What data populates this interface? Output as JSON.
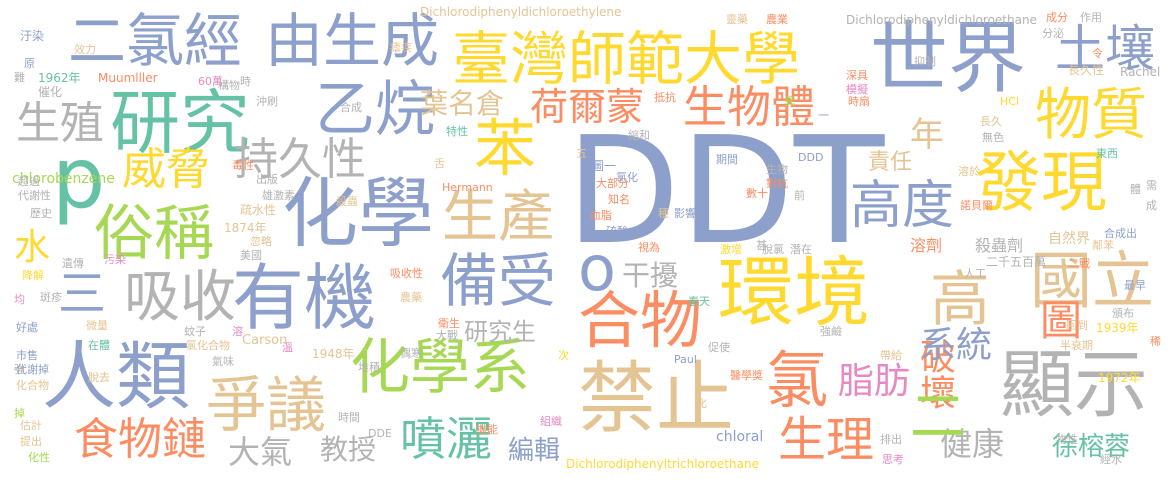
{
  "colors": {
    "blue": "#8DA0CB",
    "green": "#66C2A5",
    "orange": "#FC8D62",
    "pink": "#E78AC3",
    "lime": "#A6D854",
    "yellow": "#FFD92F",
    "tan": "#E5C494",
    "gray": "#B3B3B3"
  },
  "words": [
    {
      "text": "DDT",
      "color": "blue"
    },
    {
      "text": "環境",
      "color": "yellow"
    },
    {
      "text": "世界",
      "color": "blue"
    },
    {
      "text": "臺灣師範大學",
      "color": "yellow"
    },
    {
      "text": "二氯經",
      "color": "blue"
    },
    {
      "text": "由生成",
      "color": "blue"
    },
    {
      "text": "化學",
      "color": "blue"
    },
    {
      "text": "禁止",
      "color": "tan"
    },
    {
      "text": "有機",
      "color": "blue"
    },
    {
      "text": "人類",
      "color": "blue"
    },
    {
      "text": "研究",
      "color": "green"
    },
    {
      "text": "乙烷",
      "color": "blue"
    },
    {
      "text": "發現",
      "color": "yellow"
    },
    {
      "text": "物質",
      "color": "yellow"
    },
    {
      "text": "土壤",
      "color": "blue"
    },
    {
      "text": "顯示",
      "color": "gray"
    },
    {
      "text": "化學系",
      "color": "lime"
    },
    {
      "text": "合物",
      "color": "orange"
    },
    {
      "text": "備受",
      "color": "blue"
    },
    {
      "text": "爭議",
      "color": "tan"
    },
    {
      "text": "國立",
      "color": "tan"
    },
    {
      "text": "高度",
      "color": "blue"
    },
    {
      "text": "苯",
      "color": "yellow"
    },
    {
      "text": "p",
      "color": "green"
    },
    {
      "text": "俗稱",
      "color": "lime"
    },
    {
      "text": "持久性",
      "color": "gray"
    },
    {
      "text": "吸收",
      "color": "gray"
    },
    {
      "text": "生產",
      "color": "tan"
    },
    {
      "text": "高",
      "color": "tan"
    },
    {
      "text": "氯",
      "color": "orange"
    },
    {
      "text": "威脅",
      "color": "yellow"
    },
    {
      "text": "噴灑",
      "color": "green"
    },
    {
      "text": "食物鏈",
      "color": "orange"
    },
    {
      "text": "生物體",
      "color": "orange"
    },
    {
      "text": "荷爾蒙",
      "color": "orange"
    },
    {
      "text": "生理",
      "color": "orange"
    },
    {
      "text": "葉名倉",
      "color": "tan"
    },
    {
      "text": "生殖",
      "color": "gray"
    },
    {
      "text": "破壞",
      "color": "orange"
    },
    {
      "text": "脂肪",
      "color": "pink"
    },
    {
      "text": "圖",
      "color": "orange"
    },
    {
      "text": "系統",
      "color": "blue"
    },
    {
      "text": "健康",
      "color": "gray"
    },
    {
      "text": "徐榕蓉",
      "color": "green"
    },
    {
      "text": "大氣",
      "color": "gray"
    },
    {
      "text": "教授",
      "color": "gray"
    },
    {
      "text": "編輯",
      "color": "blue"
    },
    {
      "text": "研究生",
      "color": "gray"
    },
    {
      "text": "干擾",
      "color": "gray"
    },
    {
      "text": "水",
      "color": "yellow"
    },
    {
      "text": "三",
      "color": "blue"
    },
    {
      "text": "二",
      "color": "lime"
    },
    {
      "text": "年",
      "color": "tan"
    },
    {
      "text": "責任",
      "color": "tan"
    },
    {
      "text": "o",
      "color": "blue"
    },
    {
      "text": "殺蟲劑",
      "color": "gray"
    },
    {
      "text": "二千五百萬",
      "color": "gray"
    },
    {
      "text": "溶劑",
      "color": "orange"
    },
    {
      "text": "自然界",
      "color": "tan"
    },
    {
      "text": "Dichlorodiphenyldichloroethylene",
      "color": "tan"
    },
    {
      "text": "Dichlorodiphenyldichloroethane",
      "color": "gray"
    },
    {
      "text": "Dichlorodiphenyltrichloroethane",
      "color": "yellow"
    },
    {
      "text": "chlorobenzene",
      "color": "lime"
    },
    {
      "text": "Hermann",
      "color": "orange"
    },
    {
      "text": "Muumlller",
      "color": "orange"
    },
    {
      "text": "Rachel",
      "color": "gray"
    },
    {
      "text": "Carson",
      "color": "tan"
    },
    {
      "text": "chloral",
      "color": "blue"
    },
    {
      "text": "Paul",
      "color": "blue"
    },
    {
      "text": "DDE",
      "color": "gray"
    },
    {
      "text": "DDD",
      "color": "blue"
    },
    {
      "text": "HCl",
      "color": "yellow"
    },
    {
      "text": "1962年",
      "color": "green"
    },
    {
      "text": "1874年",
      "color": "tan"
    },
    {
      "text": "1948年",
      "color": "tan"
    },
    {
      "text": "1939年",
      "color": "yellow"
    },
    {
      "text": "1972年",
      "color": "yellow"
    },
    {
      "text": "60萬",
      "color": "pink"
    },
    {
      "text": "效力",
      "color": "tan"
    },
    {
      "text": "汙染",
      "color": "blue"
    },
    {
      "text": "催化",
      "color": "gray"
    },
    {
      "text": "構物",
      "color": "gray"
    },
    {
      "text": "沖刷",
      "color": "gray"
    },
    {
      "text": "合成",
      "color": "gray"
    },
    {
      "text": "抑制",
      "color": "gray"
    },
    {
      "text": "分泌",
      "color": "gray"
    },
    {
      "text": "作用",
      "color": "gray"
    },
    {
      "text": "長久性",
      "color": "tan"
    },
    {
      "text": "長久",
      "color": "tan"
    },
    {
      "text": "無色",
      "color": "gray"
    },
    {
      "text": "特性",
      "color": "green"
    },
    {
      "text": "縮和",
      "color": "gray"
    },
    {
      "text": "圖一",
      "color": "blue"
    },
    {
      "text": "氯化",
      "color": "blue"
    },
    {
      "text": "大部分",
      "color": "orange"
    },
    {
      "text": "知名",
      "color": "orange"
    },
    {
      "text": "血脂",
      "color": "orange"
    },
    {
      "text": "影響體",
      "color": "blue"
    },
    {
      "text": "超過",
      "color": "gray"
    },
    {
      "text": "代謝性",
      "color": "gray"
    },
    {
      "text": "歷史",
      "color": "gray"
    },
    {
      "text": "毒性",
      "color": "orange"
    },
    {
      "text": "出版",
      "color": "gray"
    },
    {
      "text": "殺蟲",
      "color": "tan"
    },
    {
      "text": "雄激素",
      "color": "gray"
    },
    {
      "text": "疏水性",
      "color": "tan"
    },
    {
      "text": "忽略",
      "color": "tan"
    },
    {
      "text": "美國",
      "color": "gray"
    },
    {
      "text": "氣味",
      "color": "gray"
    },
    {
      "text": "吸收性",
      "color": "orange"
    },
    {
      "text": "農藥",
      "color": "tan"
    },
    {
      "text": "衛生",
      "color": "orange"
    },
    {
      "text": "微量",
      "color": "tan"
    },
    {
      "text": "遺傳",
      "color": "gray"
    },
    {
      "text": "降解",
      "color": "yellow"
    },
    {
      "text": "污染",
      "color": "pink"
    },
    {
      "text": "市售",
      "color": "blue"
    },
    {
      "text": "代謝掉",
      "color": "blue"
    },
    {
      "text": "化合物",
      "color": "tan"
    },
    {
      "text": "估計",
      "color": "tan"
    },
    {
      "text": "提出",
      "color": "tan"
    },
    {
      "text": "化性",
      "color": "lime"
    },
    {
      "text": "好處",
      "color": "blue"
    },
    {
      "text": "斑疹",
      "color": "gray"
    },
    {
      "text": "蚊子",
      "color": "gray"
    },
    {
      "text": "氯化合物",
      "color": "tan"
    },
    {
      "text": "堆積",
      "color": "gray"
    },
    {
      "text": "時間",
      "color": "gray"
    },
    {
      "text": "機能",
      "color": "orange"
    },
    {
      "text": "組織",
      "color": "pink"
    },
    {
      "text": "大戰",
      "color": "gray"
    },
    {
      "text": "偶寒",
      "color": "gray"
    },
    {
      "text": "在體",
      "color": "green"
    },
    {
      "text": "促使",
      "color": "gray"
    },
    {
      "text": "醫學獎",
      "color": "orange"
    },
    {
      "text": "強鹼",
      "color": "gray"
    },
    {
      "text": "帶給",
      "color": "tan"
    },
    {
      "text": "頒布",
      "color": "gray"
    },
    {
      "text": "半衰期",
      "color": "tan"
    },
    {
      "text": "回到",
      "color": "tan"
    },
    {
      "text": "最早",
      "color": "blue"
    },
    {
      "text": "排出",
      "color": "gray"
    },
    {
      "text": "思考",
      "color": "pink"
    },
    {
      "text": "經水",
      "color": "gray"
    },
    {
      "text": "物性",
      "color": "gray"
    },
    {
      "text": "合成出",
      "color": "blue"
    },
    {
      "text": "人工",
      "color": "gray"
    },
    {
      "text": "硫酸",
      "color": "blue"
    },
    {
      "text": "視為",
      "color": "orange"
    },
    {
      "text": "潛在",
      "color": "gray"
    },
    {
      "text": "激增",
      "color": "yellow"
    },
    {
      "text": "脫氯",
      "color": "gray"
    },
    {
      "text": "春天",
      "color": "green"
    },
    {
      "text": "東西",
      "color": "green"
    },
    {
      "text": "溶於",
      "color": "tan"
    },
    {
      "text": "諾貝爾",
      "color": "orange"
    },
    {
      "text": "時扇",
      "color": "orange"
    },
    {
      "text": "深具",
      "color": "orange"
    },
    {
      "text": "模擬",
      "color": "pink"
    },
    {
      "text": "抵抗",
      "color": "orange"
    },
    {
      "text": "瘧疾",
      "color": "tan"
    },
    {
      "text": "期間",
      "color": "blue"
    },
    {
      "text": "數十",
      "color": "orange"
    },
    {
      "text": "生物",
      "color": "gray"
    },
    {
      "text": "對抗",
      "color": "orange"
    },
    {
      "text": "成分",
      "color": "orange"
    },
    {
      "text": "靈藥",
      "color": "tan"
    },
    {
      "text": "農業",
      "color": "orange"
    },
    {
      "text": "脫去",
      "color": "tan"
    },
    {
      "text": "鄰苯",
      "color": "tan"
    },
    {
      "text": "二戰",
      "color": "orange"
    },
    {
      "text": "溫",
      "color": "pink"
    },
    {
      "text": "次",
      "color": "yellow"
    },
    {
      "text": "化",
      "color": "tan"
    },
    {
      "text": "一",
      "color": "blue"
    },
    {
      "text": "異",
      "color": "lime"
    },
    {
      "text": "前",
      "color": "gray"
    },
    {
      "text": "成",
      "color": "gray"
    },
    {
      "text": "時",
      "color": "gray"
    },
    {
      "text": "原",
      "color": "blue"
    },
    {
      "text": "難",
      "color": "gray"
    },
    {
      "text": "強",
      "color": "gray"
    },
    {
      "text": "掉",
      "color": "lime"
    },
    {
      "text": "均",
      "color": "pink"
    },
    {
      "text": "稀",
      "color": "orange"
    },
    {
      "text": "舌",
      "color": "tan"
    },
    {
      "text": "五",
      "color": "tan"
    },
    {
      "text": "種",
      "color": "tan"
    },
    {
      "text": "溶",
      "color": "pink"
    },
    {
      "text": "甚",
      "color": "gray"
    },
    {
      "text": "體",
      "color": "gray"
    },
    {
      "text": "令",
      "color": "orange"
    },
    {
      "text": "需",
      "color": "gray"
    },
    {
      "text": "剛",
      "color": "blue"
    }
  ]
}
